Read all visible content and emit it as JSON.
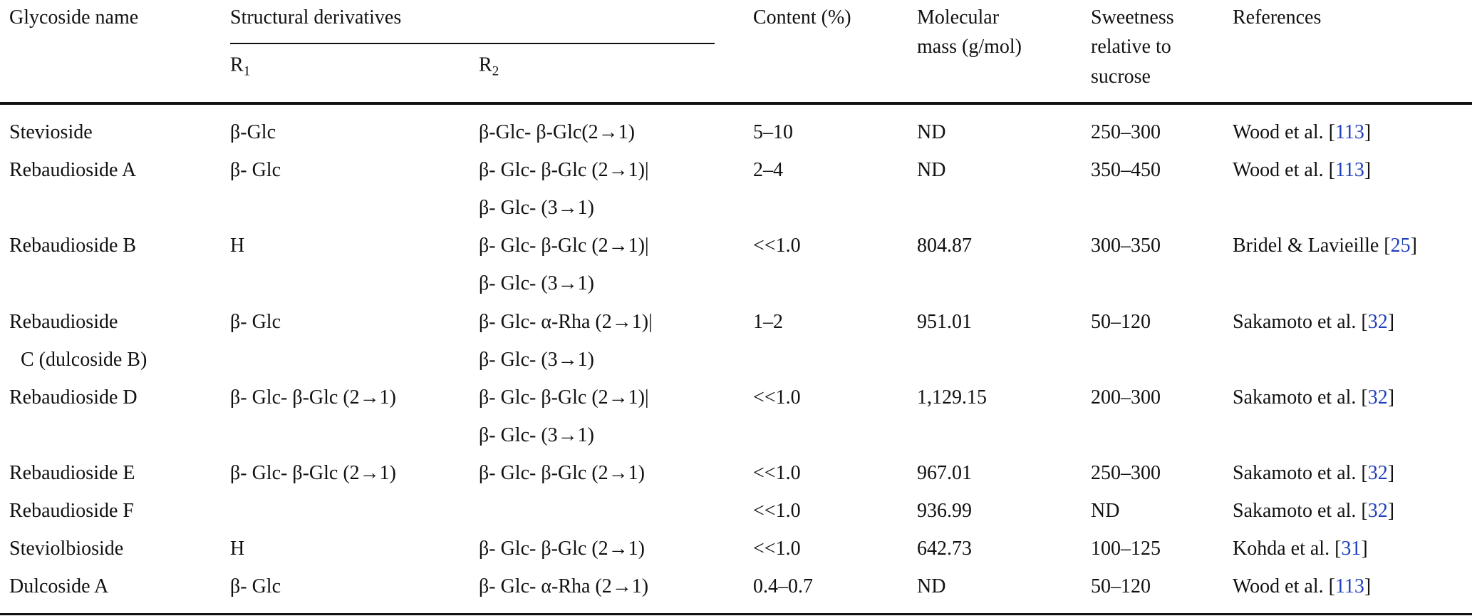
{
  "table": {
    "header": {
      "name": [
        "Glycoside name"
      ],
      "structural": "Structural derivatives",
      "r1": {
        "base": "R",
        "sub": "1"
      },
      "r2": {
        "base": "R",
        "sub": "2"
      },
      "content": [
        "Content (%)"
      ],
      "mass": [
        "Molecular",
        "mass (g/mol)"
      ],
      "sweetness": [
        "Sweetness",
        "relative to",
        "sucrose"
      ],
      "reference": [
        "References"
      ]
    },
    "rows": [
      {
        "name": [
          "Stevioside"
        ],
        "r1": [
          "β-Glc"
        ],
        "r2": [
          "β-Glc- β-Glc(2→1)"
        ],
        "content": "5–10",
        "mass": "ND",
        "sweetness": "250–300",
        "reference": [
          "Wood et al. [",
          "113",
          "]"
        ]
      },
      {
        "name": [
          "Rebaudioside A"
        ],
        "r1": [
          "β- Glc"
        ],
        "r2": [
          "β- Glc- β-Glc (2→1)|",
          "β- Glc- (3→1)"
        ],
        "content": "2–4",
        "mass": "ND",
        "sweetness": "350–450",
        "reference": [
          "Wood et al. [",
          "113",
          "]"
        ]
      },
      {
        "name": [
          "Rebaudioside B"
        ],
        "r1": [
          "H"
        ],
        "r2": [
          "β- Glc- β-Glc (2→1)|",
          "β- Glc- (3→1)"
        ],
        "content": "<<1.0",
        "mass": "804.87",
        "sweetness": "300–350",
        "reference": [
          "Bridel & Lavieille [",
          "25",
          "]"
        ]
      },
      {
        "name": [
          "Rebaudioside",
          "C (dulcoside B)"
        ],
        "r1": [
          "β- Glc"
        ],
        "r2": [
          "β- Glc- α-Rha (2→1)|",
          "β- Glc- (3→1)"
        ],
        "content": "1–2",
        "mass": "951.01",
        "sweetness": "50–120",
        "reference": [
          "Sakamoto et al. [",
          "32",
          "]"
        ]
      },
      {
        "name": [
          "Rebaudioside D"
        ],
        "r1": [
          "β- Glc- β-Glc (2→1)"
        ],
        "r2": [
          "β- Glc- β-Glc (2→1)|",
          "β- Glc- (3→1)"
        ],
        "content": "<<1.0",
        "mass": "1,129.15",
        "sweetness": "200–300",
        "reference": [
          "Sakamoto et al. [",
          "32",
          "]"
        ]
      },
      {
        "name": [
          "Rebaudioside E"
        ],
        "r1": [
          "β- Glc- β-Glc (2→1)"
        ],
        "r2": [
          "β- Glc- β-Glc (2→1)"
        ],
        "content": "<<1.0",
        "mass": "967.01",
        "sweetness": "250–300",
        "reference": [
          "Sakamoto et al. [",
          "32",
          "]"
        ]
      },
      {
        "name": [
          "Rebaudioside F"
        ],
        "content": "<<1.0",
        "mass": "936.99",
        "sweetness": "ND",
        "reference": [
          "Sakamoto et al. [",
          "32",
          "]"
        ]
      },
      {
        "name": [
          "Steviolbioside"
        ],
        "r1": [
          "H"
        ],
        "r2": [
          "β- Glc- β-Glc (2→1)"
        ],
        "content": "<<1.0",
        "mass": "642.73",
        "sweetness": "100–125",
        "reference": [
          "Kohda et al. [",
          "31",
          "]"
        ]
      },
      {
        "name": [
          "Dulcoside A"
        ],
        "r1": [
          "β- Glc"
        ],
        "r2": [
          "β- Glc- α-Rha (2→1)"
        ],
        "content": "0.4–0.7",
        "mass": "ND",
        "sweetness": "50–120",
        "reference": [
          "Wood et al. [",
          "113",
          "]"
        ]
      }
    ]
  }
}
